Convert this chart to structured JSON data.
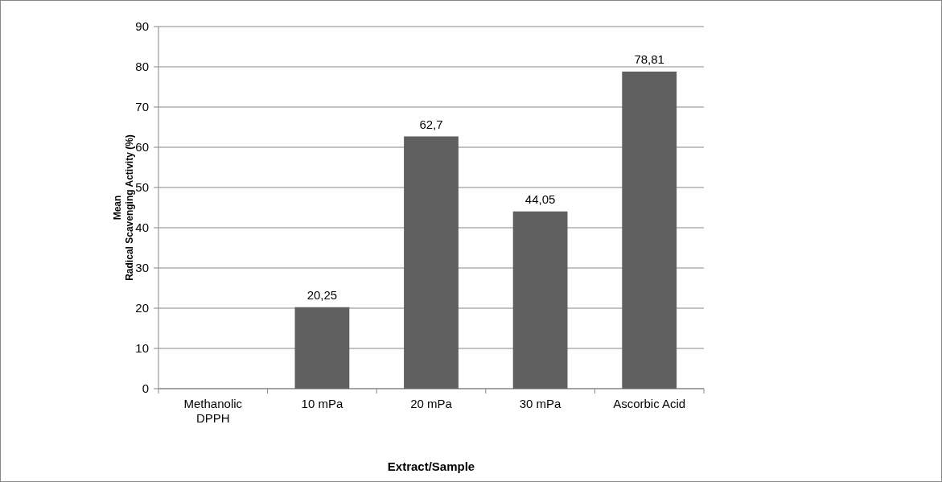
{
  "chart_data": {
    "type": "bar",
    "xlabel": "Extract/Sample",
    "ylabel": "Mean\nRadical Scavenging Activity (%)",
    "categories": [
      "Methanolic DPPH",
      "10 mPa",
      "20 mPa",
      "30 mPa",
      "Ascorbic Acid"
    ],
    "values": [
      0,
      20.25,
      62.7,
      44.05,
      78.81
    ],
    "value_labels": [
      null,
      "20,25",
      "62,7",
      "44,05",
      "78,81"
    ],
    "color": "#606060",
    "ylim": [
      0,
      90
    ],
    "yticks": [
      0,
      10,
      20,
      30,
      40,
      50,
      60,
      70,
      80,
      90
    ],
    "grid": "y"
  }
}
